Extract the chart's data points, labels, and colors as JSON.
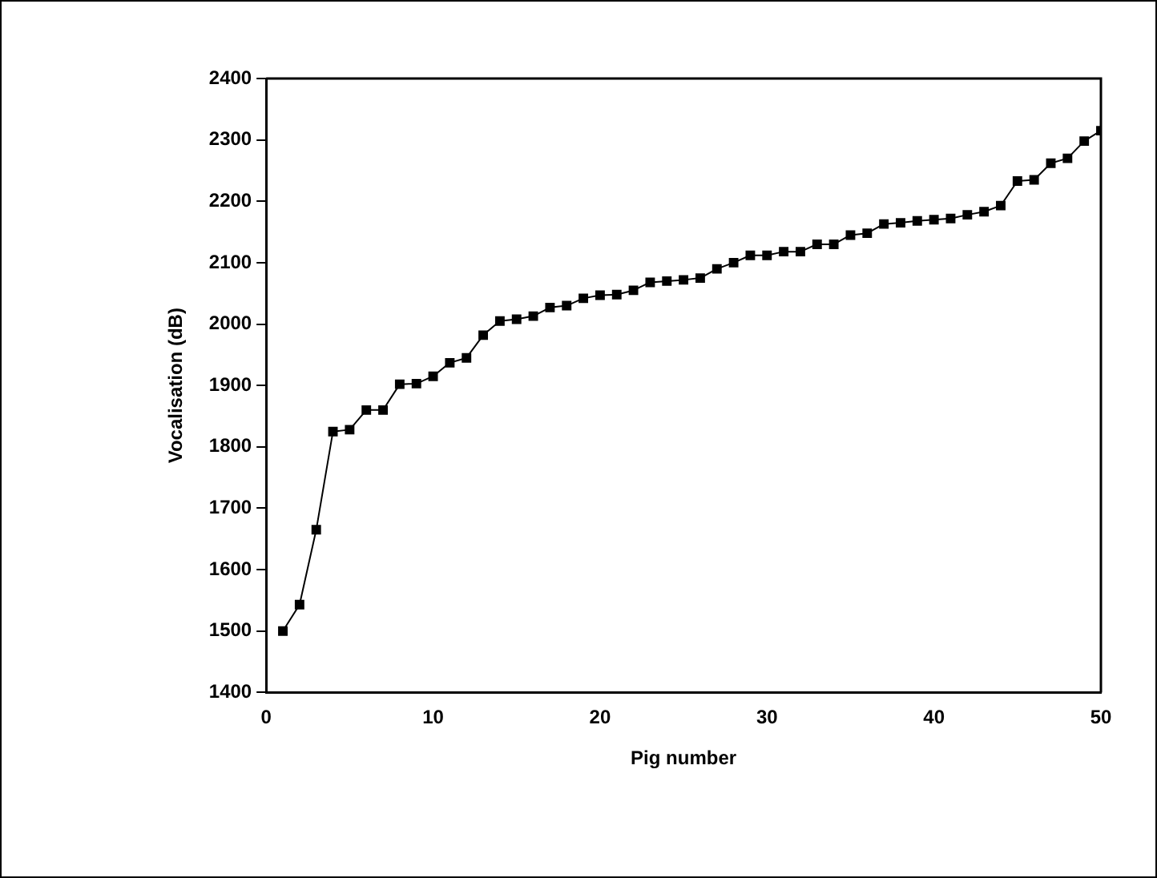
{
  "chart_data": {
    "type": "line",
    "xlabel": "Pig number",
    "ylabel": "Vocalisation (dB)",
    "x": [
      1,
      2,
      3,
      4,
      5,
      6,
      7,
      8,
      9,
      10,
      11,
      12,
      13,
      14,
      15,
      16,
      17,
      18,
      19,
      20,
      21,
      22,
      23,
      24,
      25,
      26,
      27,
      28,
      29,
      30,
      31,
      32,
      33,
      34,
      35,
      36,
      37,
      38,
      39,
      40,
      41,
      42,
      43,
      44,
      45,
      46,
      47,
      48,
      49,
      50
    ],
    "series": [
      {
        "color": "#000000",
        "values": [
          1500,
          1543,
          1665,
          1825,
          1828,
          1860,
          1860,
          1902,
          1903,
          1915,
          1937,
          1945,
          1982,
          2005,
          2008,
          2013,
          2027,
          2030,
          2042,
          2047,
          2048,
          2055,
          2068,
          2070,
          2072,
          2075,
          2090,
          2100,
          2112,
          2112,
          2118,
          2118,
          2130,
          2130,
          2145,
          2148,
          2163,
          2165,
          2168,
          2170,
          2172,
          2178,
          2183,
          2193,
          2233,
          2235,
          2262,
          2270,
          2298,
          2315
        ]
      }
    ],
    "xlim": [
      0,
      50
    ],
    "xticks": [
      0,
      10,
      20,
      30,
      40,
      50
    ],
    "ylim": [
      1400,
      2400
    ],
    "yticks": [
      1400,
      1500,
      1600,
      1700,
      1800,
      1900,
      2000,
      2100,
      2200,
      2300,
      2400
    ],
    "grid": false,
    "legend": false,
    "marker": "square",
    "line_style": "solid"
  }
}
